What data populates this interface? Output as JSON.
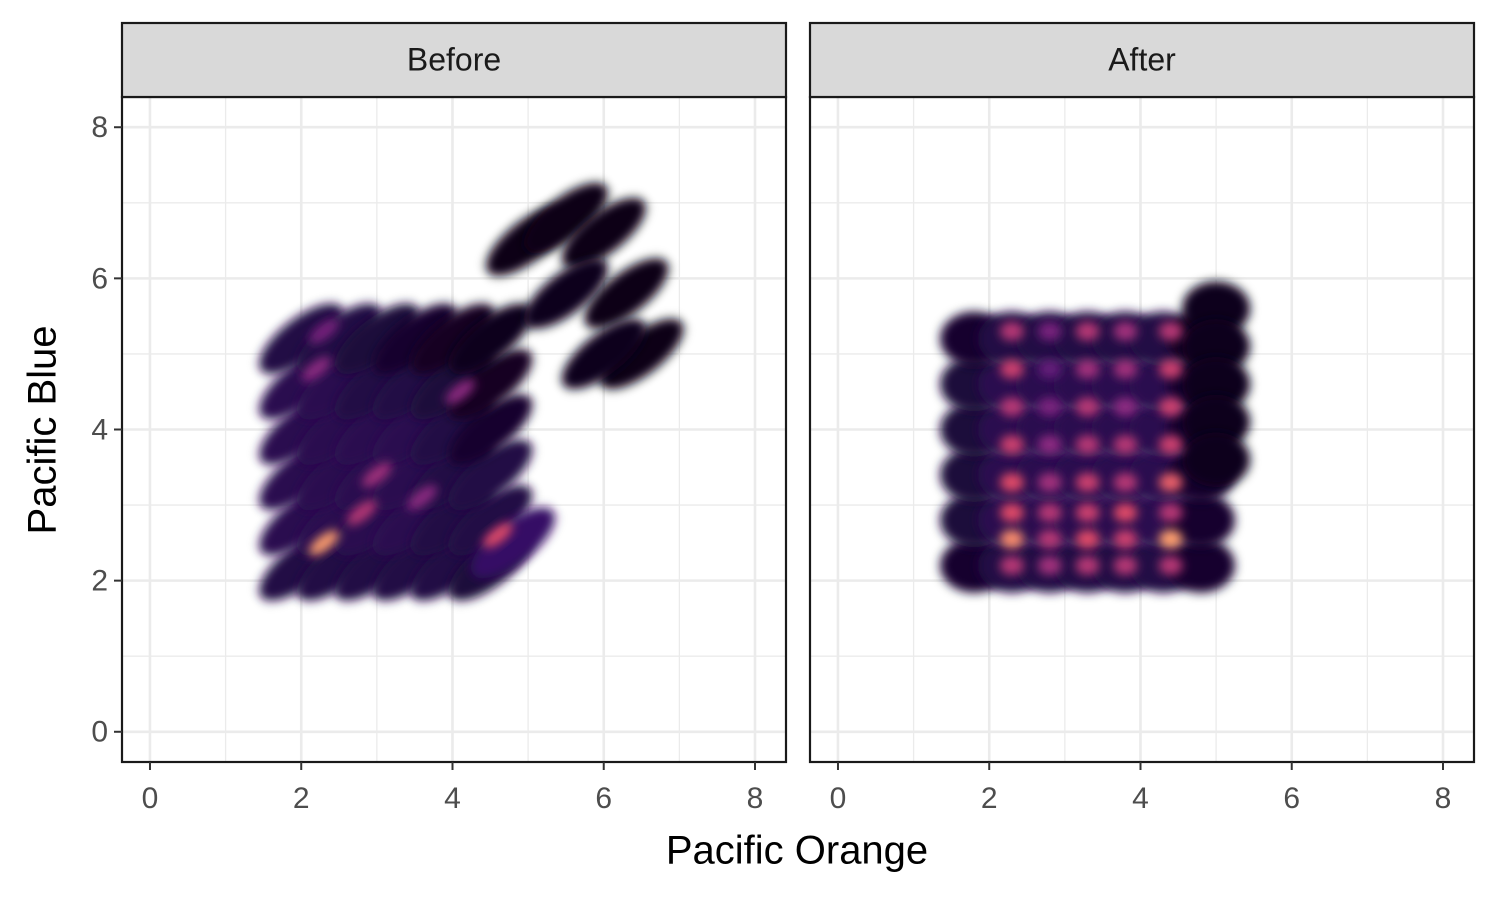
{
  "chart_data": {
    "type": "density-scatter",
    "xlabel": "Pacific Orange",
    "ylabel": "Pacific Blue",
    "xlim": [
      -0.37,
      8.41
    ],
    "ylim": [
      -0.4,
      8.4
    ],
    "xticks": [
      0,
      2,
      4,
      6,
      8
    ],
    "yticks": [
      0,
      2,
      4,
      6,
      8
    ],
    "minor_xticks": [
      1,
      3,
      5,
      7
    ],
    "minor_yticks": [
      1,
      3,
      5,
      7
    ],
    "grid": true,
    "colormap": [
      "#000004",
      "#3b0f70",
      "#8c2981",
      "#de4968",
      "#fe9f6d",
      "#fcfdbf"
    ],
    "facets": [
      {
        "title": "Before",
        "x": [
          2.0,
          2.5,
          3.0,
          3.5,
          4.0,
          4.5,
          2.0,
          2.5,
          3.0,
          3.5,
          4.0,
          4.5,
          2.0,
          2.5,
          3.0,
          3.5,
          4.0,
          4.5,
          2.0,
          2.5,
          3.0,
          3.5,
          4.0,
          4.5,
          2.0,
          2.5,
          3.0,
          3.5,
          4.0,
          4.5,
          2.0,
          2.5,
          3.0,
          3.5,
          4.0,
          4.5,
          5.0,
          5.5,
          6.0,
          6.3,
          6.5,
          5.5,
          6.0,
          4.8,
          2.3,
          2.8,
          2.2,
          2.3,
          3.0,
          4.6,
          3.6,
          4.1
        ],
        "y": [
          2.2,
          2.2,
          2.2,
          2.2,
          2.2,
          2.2,
          2.8,
          2.8,
          2.8,
          2.8,
          2.8,
          2.8,
          3.4,
          3.4,
          3.4,
          3.4,
          3.4,
          3.4,
          4.0,
          4.0,
          4.0,
          4.0,
          4.0,
          4.0,
          4.6,
          4.6,
          4.6,
          4.6,
          4.6,
          4.6,
          5.2,
          5.2,
          5.2,
          5.2,
          5.2,
          5.2,
          6.5,
          6.8,
          6.6,
          5.8,
          5.0,
          5.8,
          5.0,
          2.5,
          2.5,
          2.9,
          4.8,
          5.3,
          3.4,
          2.6,
          3.1,
          4.5
        ],
        "density": [
          0.12,
          0.12,
          0.12,
          0.12,
          0.12,
          0.1,
          0.14,
          0.14,
          0.14,
          0.14,
          0.12,
          0.12,
          0.14,
          0.14,
          0.14,
          0.14,
          0.12,
          0.12,
          0.14,
          0.14,
          0.14,
          0.14,
          0.12,
          0.08,
          0.14,
          0.14,
          0.12,
          0.12,
          0.1,
          0.06,
          0.12,
          0.12,
          0.1,
          0.08,
          0.06,
          0.04,
          0.03,
          0.03,
          0.03,
          0.03,
          0.03,
          0.04,
          0.04,
          0.18,
          0.8,
          0.5,
          0.4,
          0.35,
          0.45,
          0.6,
          0.4,
          0.4
        ]
      },
      {
        "title": "After",
        "x": [
          1.8,
          2.3,
          2.8,
          3.3,
          3.8,
          4.3,
          4.8,
          1.8,
          2.3,
          2.8,
          3.3,
          3.8,
          4.3,
          4.8,
          1.8,
          2.3,
          2.8,
          3.3,
          3.8,
          4.3,
          4.8,
          1.8,
          2.3,
          2.8,
          3.3,
          3.8,
          4.3,
          4.8,
          1.8,
          2.3,
          2.8,
          3.3,
          3.8,
          4.3,
          4.8,
          1.8,
          2.3,
          2.8,
          3.3,
          3.8,
          4.3,
          4.8,
          5.0,
          5.0,
          5.0,
          5.0,
          5.0,
          2.3,
          2.8,
          3.3,
          3.8,
          4.4,
          2.3,
          2.8,
          3.3,
          3.8,
          4.4,
          2.3,
          2.8,
          3.3,
          3.8,
          4.4,
          2.3,
          2.8,
          3.3,
          3.8,
          4.4,
          2.3,
          2.8,
          3.3,
          3.8,
          4.4,
          2.3,
          2.8,
          3.3,
          3.8,
          4.4,
          2.3,
          2.8,
          3.3,
          3.8,
          4.4,
          2.3,
          2.8,
          3.3,
          3.8,
          4.4
        ],
        "y": [
          2.2,
          2.2,
          2.2,
          2.2,
          2.2,
          2.2,
          2.2,
          2.8,
          2.8,
          2.8,
          2.8,
          2.8,
          2.8,
          2.8,
          3.4,
          3.4,
          3.4,
          3.4,
          3.4,
          3.4,
          3.4,
          4.0,
          4.0,
          4.0,
          4.0,
          4.0,
          4.0,
          4.0,
          4.6,
          4.6,
          4.6,
          4.6,
          4.6,
          4.6,
          4.6,
          5.2,
          5.2,
          5.2,
          5.2,
          5.2,
          5.2,
          5.2,
          5.6,
          5.1,
          4.6,
          4.1,
          3.6,
          5.3,
          5.3,
          5.3,
          5.3,
          5.3,
          4.8,
          4.8,
          4.8,
          4.8,
          4.8,
          4.3,
          4.3,
          4.3,
          4.3,
          4.3,
          3.8,
          3.8,
          3.8,
          3.8,
          3.8,
          3.3,
          3.3,
          3.3,
          3.3,
          3.3,
          2.9,
          2.9,
          2.9,
          2.9,
          2.9,
          2.55,
          2.55,
          2.55,
          2.55,
          2.55,
          2.2,
          2.2,
          2.2,
          2.2,
          2.2
        ],
        "density": [
          0.08,
          0.12,
          0.12,
          0.12,
          0.12,
          0.12,
          0.08,
          0.1,
          0.14,
          0.14,
          0.14,
          0.14,
          0.14,
          0.08,
          0.1,
          0.14,
          0.14,
          0.14,
          0.14,
          0.14,
          0.08,
          0.1,
          0.14,
          0.14,
          0.14,
          0.14,
          0.14,
          0.08,
          0.1,
          0.14,
          0.14,
          0.14,
          0.14,
          0.14,
          0.08,
          0.08,
          0.12,
          0.12,
          0.12,
          0.12,
          0.12,
          0.06,
          0.05,
          0.05,
          0.05,
          0.05,
          0.05,
          0.5,
          0.35,
          0.5,
          0.45,
          0.5,
          0.55,
          0.3,
          0.45,
          0.45,
          0.55,
          0.5,
          0.35,
          0.5,
          0.4,
          0.55,
          0.55,
          0.4,
          0.5,
          0.5,
          0.55,
          0.6,
          0.45,
          0.55,
          0.5,
          0.65,
          0.6,
          0.5,
          0.55,
          0.6,
          0.5,
          0.75,
          0.5,
          0.6,
          0.55,
          0.8,
          0.5,
          0.45,
          0.5,
          0.5,
          0.5
        ]
      }
    ]
  }
}
